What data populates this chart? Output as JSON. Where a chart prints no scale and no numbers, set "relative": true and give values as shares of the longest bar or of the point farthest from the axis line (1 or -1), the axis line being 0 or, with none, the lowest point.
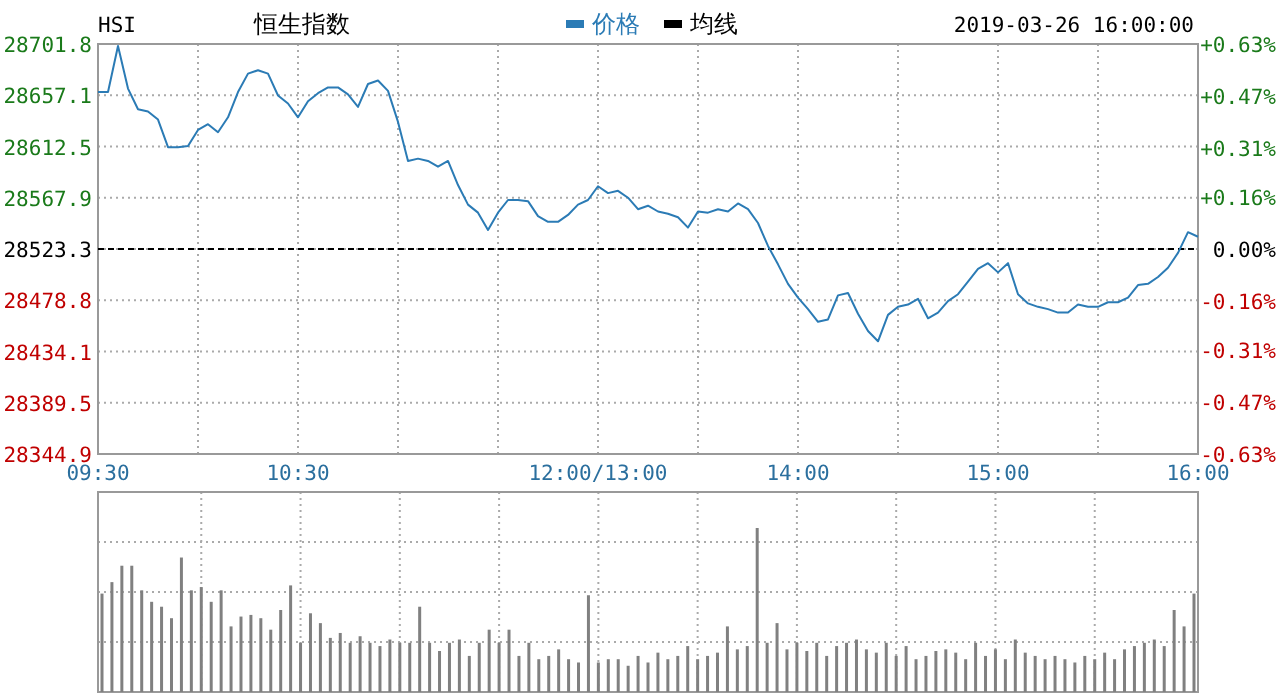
{
  "chart_data": [
    {
      "type": "line",
      "title": "HSI",
      "subtitle": "恒生指数",
      "annotations": [
        "2019-03-26 16:00:00"
      ],
      "legend": "top",
      "grid": true,
      "marker": "none",
      "categories": [
        "09:30",
        null,
        null,
        null,
        null,
        null,
        null,
        null,
        null,
        null,
        null,
        null,
        null,
        null,
        null,
        null,
        null,
        null,
        null,
        null,
        "10:30",
        null,
        null,
        null,
        null,
        null,
        null,
        null,
        null,
        null,
        null,
        null,
        null,
        null,
        null,
        null,
        null,
        null,
        null,
        null,
        null,
        null,
        null,
        null,
        null,
        null,
        null,
        null,
        null,
        null,
        "12:00/13:00",
        null,
        null,
        null,
        null,
        null,
        null,
        null,
        null,
        null,
        null,
        null,
        null,
        null,
        null,
        null,
        null,
        null,
        null,
        null,
        "14:00",
        null,
        null,
        null,
        null,
        null,
        null,
        null,
        null,
        null,
        null,
        null,
        null,
        null,
        null,
        null,
        null,
        null,
        null,
        null,
        "15:00",
        null,
        null,
        null,
        null,
        null,
        null,
        null,
        null,
        null,
        null,
        null,
        null,
        null,
        null,
        null,
        null,
        null,
        null,
        null,
        "16:00"
      ],
      "ylim": [
        28344.9,
        28701.8
      ],
      "yticks": [
        28344.9,
        28389.5,
        28434.1,
        28478.8,
        28523.3,
        28567.9,
        28612.5,
        28657.1,
        28701.8
      ],
      "y2lim": [
        -0.63,
        0.63
      ],
      "y2ticks": [
        {
          "value": -0.63,
          "label": "-0.63%"
        },
        {
          "value": -0.47,
          "label": "-0.47%"
        },
        {
          "value": -0.31,
          "label": "-0.31%"
        },
        {
          "value": -0.16,
          "label": "-0.16%"
        },
        {
          "value": 0,
          "label": "0.00%"
        },
        {
          "value": 0.16,
          "label": "+0.16%"
        },
        {
          "value": 0.31,
          "label": "+0.31%"
        },
        {
          "value": 0.47,
          "label": "+0.47%"
        },
        {
          "value": 0.63,
          "label": "+0.63%"
        }
      ],
      "ref_lines": [
        {
          "axis": "y",
          "value": 28523.3,
          "color": "#000000",
          "line_style": "dashed"
        }
      ],
      "series": [
        {
          "name": "价格",
          "color": "#2b7bb5",
          "line_style": "solid",
          "values": [
            28660,
            28660,
            28700,
            28663,
            28645,
            28643,
            28636,
            28612,
            28612,
            28613,
            28627,
            28632,
            28625,
            28638,
            28660,
            28676,
            28679,
            28676,
            28657,
            28650,
            28638,
            28652,
            28659,
            28664,
            28664,
            28658,
            28647,
            28667,
            28670,
            28661,
            28634,
            28600,
            28602,
            28600,
            28595,
            28600,
            28579,
            28562,
            28555,
            28540,
            28555,
            28566,
            28566,
            28565,
            28552,
            28547,
            28547,
            28553,
            28562,
            28566,
            28578,
            28572,
            28574,
            28568,
            28558,
            28561,
            28556,
            28554,
            28551,
            28542,
            28556,
            28555,
            28558,
            28556,
            28563,
            28558,
            28546,
            28526,
            28510,
            28493,
            28481,
            28471,
            28460,
            28462,
            28483,
            28485,
            28467,
            28452,
            28443,
            28466,
            28473,
            28475,
            28480,
            28463,
            28468,
            28478,
            28484,
            28495,
            28506,
            28511,
            28503,
            28511,
            28484,
            28476,
            28473,
            28471,
            28468,
            28468,
            28475,
            28473,
            28473,
            28477,
            28477,
            28481,
            28492,
            28493,
            28499,
            28507,
            28520,
            28538,
            28534
          ]
        },
        {
          "name": "均线",
          "color": "#000000",
          "values": [
            null,
            null,
            null,
            null,
            null,
            null,
            null,
            null,
            null,
            null,
            null,
            null,
            null,
            null,
            null,
            null,
            null,
            null,
            null,
            null,
            null,
            null,
            null,
            null,
            null,
            null,
            null,
            null,
            null,
            null,
            null,
            null,
            null,
            null,
            null,
            null,
            null,
            null,
            null,
            null,
            null,
            null,
            null,
            null,
            null,
            null,
            null,
            null,
            null,
            null,
            null,
            null,
            null,
            null,
            null,
            null,
            null,
            null,
            null,
            null,
            null,
            null,
            null,
            null,
            null,
            null,
            null,
            null,
            null,
            null,
            null,
            null,
            null,
            null,
            null,
            null,
            null,
            null,
            null,
            null,
            null,
            null,
            null,
            null,
            null,
            null,
            null,
            null,
            null,
            null,
            null,
            null,
            null,
            null,
            null,
            null,
            null,
            null,
            null,
            null,
            null,
            null,
            null,
            null,
            null,
            null,
            null,
            null,
            null,
            null,
            null
          ]
        }
      ]
    },
    {
      "type": "bar",
      "relative": true,
      "grid": true,
      "color": "#808080",
      "categories": [
        null,
        null,
        null,
        null,
        null,
        null,
        null,
        null,
        null,
        null,
        null,
        null,
        null,
        null,
        null,
        null,
        null,
        null,
        null,
        null,
        null,
        null,
        null,
        null,
        null,
        null,
        null,
        null,
        null,
        null,
        null,
        null,
        null,
        null,
        null,
        null,
        null,
        null,
        null,
        null,
        null,
        null,
        null,
        null,
        null,
        null,
        null,
        null,
        null,
        null,
        null,
        null,
        null,
        null,
        null,
        null,
        null,
        null,
        null,
        null,
        null,
        null,
        null,
        null,
        null,
        null,
        null,
        null,
        null,
        null,
        null,
        null,
        null,
        null,
        null,
        null,
        null,
        null,
        null,
        null,
        null,
        null,
        null,
        null,
        null,
        null,
        null,
        null,
        null,
        null,
        null,
        null,
        null,
        null,
        null,
        null,
        null,
        null,
        null,
        null,
        null,
        null,
        null,
        null,
        null,
        null,
        null,
        null,
        null,
        null,
        null
      ],
      "values": [
        0.6,
        0.67,
        0.77,
        0.77,
        0.62,
        0.55,
        0.52,
        0.45,
        0.82,
        0.62,
        0.64,
        0.55,
        0.62,
        0.4,
        0.46,
        0.47,
        0.45,
        0.38,
        0.5,
        0.65,
        0.3,
        0.48,
        0.42,
        0.33,
        0.36,
        0.3,
        0.34,
        0.3,
        0.28,
        0.32,
        0.3,
        0.3,
        0.52,
        0.3,
        0.25,
        0.3,
        0.32,
        0.22,
        0.3,
        0.38,
        0.3,
        0.38,
        0.22,
        0.3,
        0.2,
        0.22,
        0.26,
        0.2,
        0.18,
        0.59,
        0.18,
        0.2,
        0.2,
        0.16,
        0.22,
        0.18,
        0.24,
        0.2,
        0.22,
        0.28,
        0.2,
        0.22,
        0.24,
        0.4,
        0.26,
        0.28,
        1.0,
        0.3,
        0.42,
        0.26,
        0.3,
        0.25,
        0.3,
        0.22,
        0.28,
        0.3,
        0.32,
        0.26,
        0.24,
        0.3,
        0.22,
        0.28,
        0.2,
        0.22,
        0.25,
        0.26,
        0.24,
        0.2,
        0.3,
        0.22,
        0.26,
        0.2,
        0.32,
        0.24,
        0.22,
        0.2,
        0.22,
        0.2,
        0.18,
        0.22,
        0.2,
        0.24,
        0.2,
        0.26,
        0.28,
        0.3,
        0.32,
        0.28,
        0.5,
        0.4,
        0.6
      ]
    }
  ]
}
